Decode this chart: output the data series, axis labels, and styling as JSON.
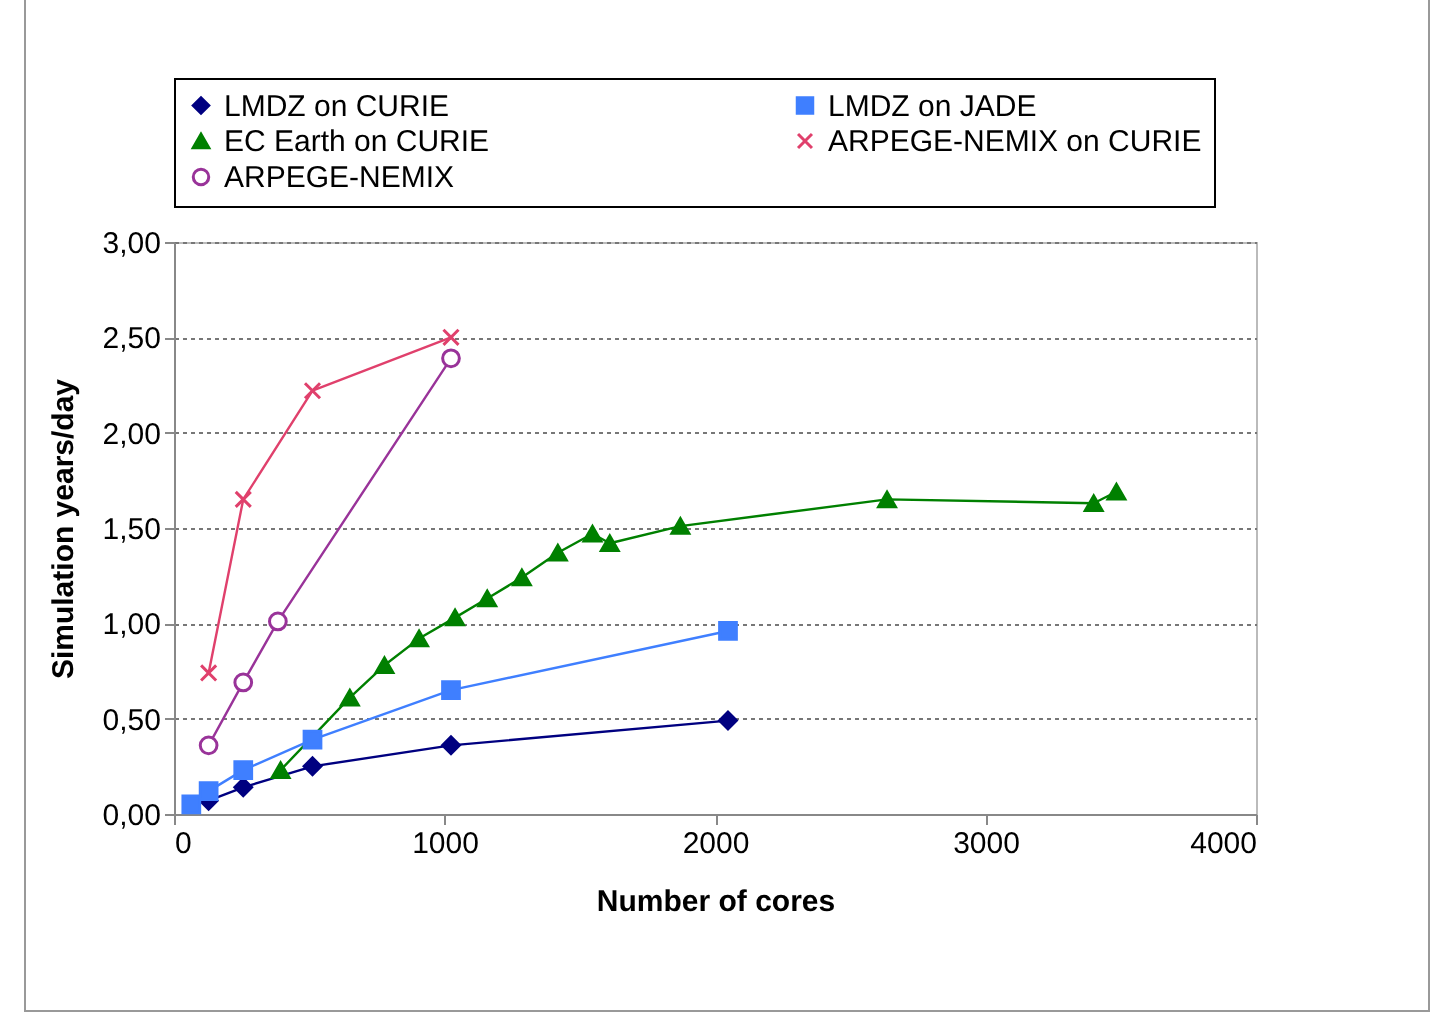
{
  "chart_data": {
    "type": "line",
    "xlabel": "Number of cores",
    "ylabel": "Simulation years/day",
    "xlim": [
      0,
      4000
    ],
    "xticks": [
      0,
      1000,
      2000,
      3000,
      4000
    ],
    "ylim": [
      0,
      3
    ],
    "yticks": [
      {
        "value": 0,
        "label": "0,00"
      },
      {
        "value": 0.5,
        "label": "0,50"
      },
      {
        "value": 1,
        "label": "1,00"
      },
      {
        "value": 1.5,
        "label": "1,50"
      },
      {
        "value": 2,
        "label": "2,00"
      },
      {
        "value": 2.5,
        "label": "2,50"
      },
      {
        "value": 3,
        "label": "3,00"
      }
    ],
    "grid": "y",
    "legend": "top",
    "series": [
      {
        "name": "LMDZ on CURIE",
        "color": "#000080",
        "marker": "diamond",
        "x": [
          128,
          256,
          512,
          1024,
          2048
        ],
        "values": [
          0.07,
          0.14,
          0.25,
          0.36,
          0.49
        ]
      },
      {
        "name": "LMDZ on JADE",
        "color": "#3f7fff",
        "marker": "square",
        "x": [
          64,
          128,
          256,
          512,
          1024,
          2048
        ],
        "values": [
          0.05,
          0.12,
          0.23,
          0.39,
          0.65,
          0.96
        ]
      },
      {
        "name": "EC Earth on CURIE",
        "color": "#008000",
        "marker": "triangle",
        "x": [
          394,
          650,
          778,
          906,
          1039,
          1158,
          1286,
          1419,
          1547,
          1611,
          1872,
          2636,
          3400,
          3484
        ],
        "values": [
          0.23,
          0.61,
          0.78,
          0.92,
          1.03,
          1.13,
          1.24,
          1.37,
          1.47,
          1.42,
          1.51,
          1.65,
          1.63,
          1.69
        ]
      },
      {
        "name": "ARPEGE-NEMIX on CURIE",
        "color": "#e0406c",
        "marker": "cross",
        "x": [
          128,
          256,
          512,
          1024
        ],
        "values": [
          0.74,
          1.65,
          2.22,
          2.5
        ]
      },
      {
        "name": "ARPEGE-NEMIX",
        "color": "#993399",
        "marker": "circle",
        "x": [
          128,
          256,
          384,
          1024
        ],
        "values": [
          0.36,
          0.69,
          1.01,
          2.39
        ]
      }
    ]
  }
}
